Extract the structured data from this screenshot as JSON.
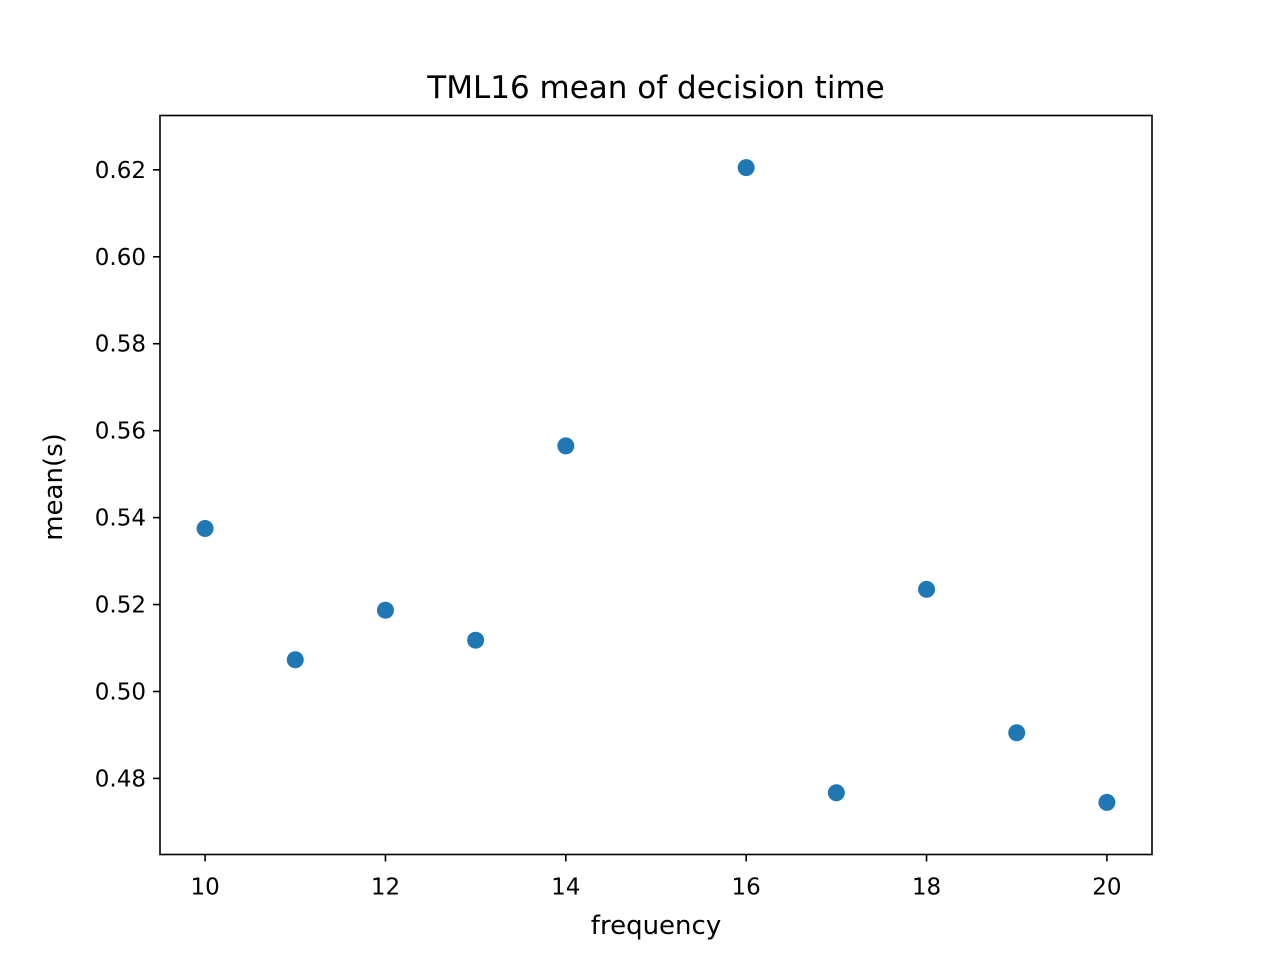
{
  "chart_data": {
    "type": "scatter",
    "title": "TML16 mean of decision time",
    "xlabel": "frequency",
    "ylabel": "mean(s)",
    "xlim": [
      9.5,
      20.5
    ],
    "ylim": [
      0.4625,
      0.6325
    ],
    "xticks": [
      10,
      12,
      14,
      16,
      18,
      20
    ],
    "xtick_labels": [
      "10",
      "12",
      "14",
      "16",
      "18",
      "20"
    ],
    "yticks": [
      0.48,
      0.5,
      0.52,
      0.54,
      0.56,
      0.58,
      0.6,
      0.62
    ],
    "ytick_labels": [
      "0.48",
      "0.50",
      "0.52",
      "0.54",
      "0.56",
      "0.58",
      "0.60",
      "0.62"
    ],
    "grid": false,
    "series": [
      {
        "color": "#1f77b4",
        "marker": "circle",
        "x": [
          10,
          11,
          12,
          13,
          14,
          16,
          17,
          18,
          19,
          20
        ],
        "y": [
          0.5375,
          0.5073,
          0.5187,
          0.5118,
          0.5565,
          0.6205,
          0.4767,
          0.5235,
          0.4905,
          0.4745
        ]
      }
    ]
  }
}
